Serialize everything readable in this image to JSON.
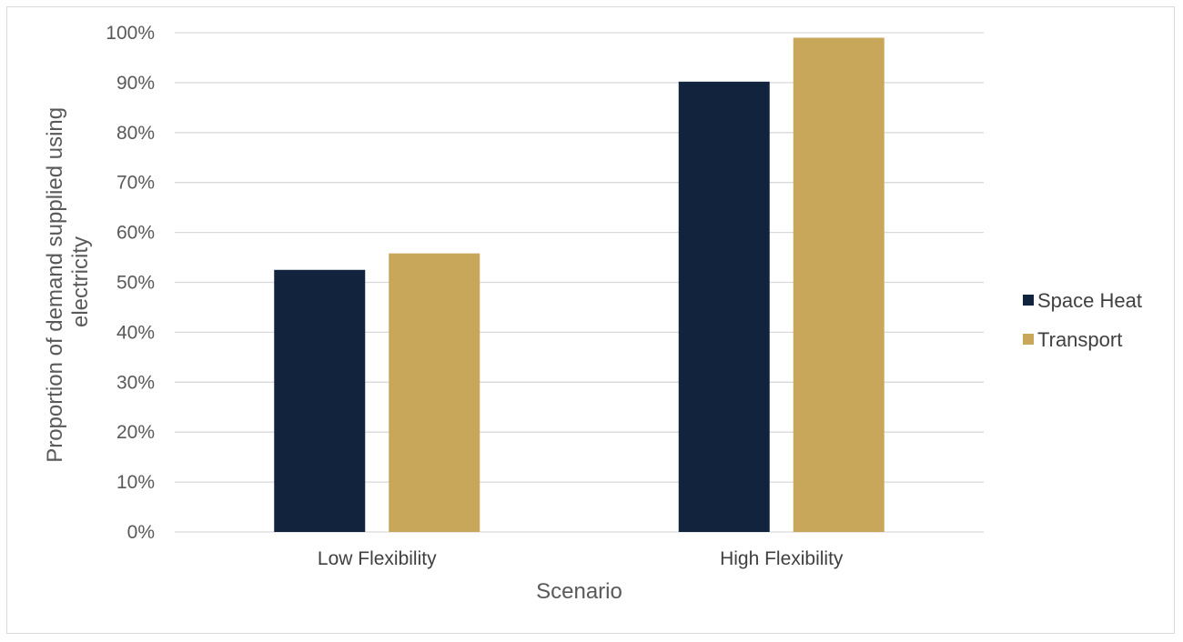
{
  "chart_data": {
    "type": "bar",
    "title": "",
    "xlabel": "Scenario",
    "ylabel_lines": [
      "Proportion of demand supplied using",
      "electricity"
    ],
    "categories": [
      "Low Flexibility",
      "High Flexibility"
    ],
    "series": [
      {
        "name": "Space Heat",
        "values": [
          52.5,
          90.2
        ],
        "color": "#12233d"
      },
      {
        "name": "Transport",
        "values": [
          55.8,
          99.0
        ],
        "color": "#c8a75a"
      }
    ],
    "ylim": [
      0,
      100
    ],
    "yticks": [
      0,
      10,
      20,
      30,
      40,
      50,
      60,
      70,
      80,
      90,
      100
    ],
    "ytick_suffix": "%",
    "grid": true,
    "grid_color": "#d9d9d9",
    "legend_position": "right"
  }
}
